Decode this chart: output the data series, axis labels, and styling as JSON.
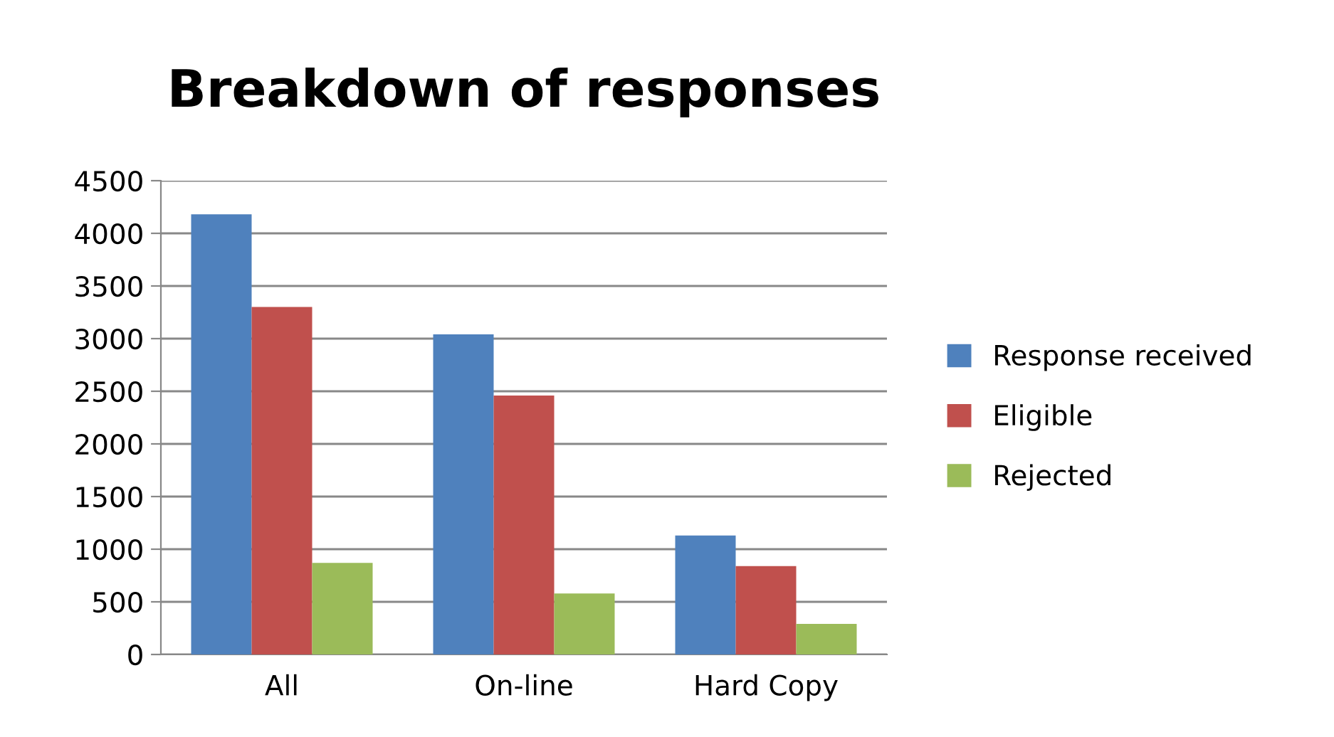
{
  "chart_data": {
    "type": "bar",
    "title": "Breakdown of responses",
    "categories": [
      "All",
      "On-line",
      "Hard Copy"
    ],
    "series": [
      {
        "name": "Response received",
        "color": "#4f81bd",
        "values": [
          4180,
          3040,
          1130
        ]
      },
      {
        "name": "Eligible",
        "color": "#c0504d",
        "values": [
          3300,
          2460,
          840
        ]
      },
      {
        "name": "Rejected",
        "color": "#9bbb59",
        "values": [
          870,
          580,
          290
        ]
      }
    ],
    "ylim": [
      0,
      4500
    ],
    "yticks": [
      0,
      500,
      1000,
      1500,
      2000,
      2500,
      3000,
      3500,
      4000,
      4500
    ],
    "grid": "y",
    "legend": "right"
  }
}
